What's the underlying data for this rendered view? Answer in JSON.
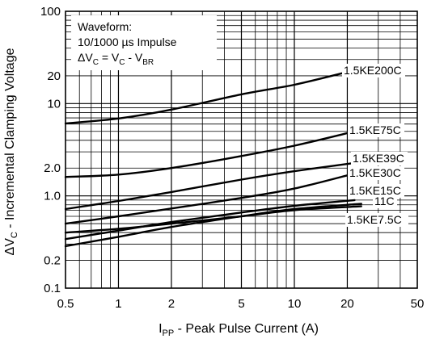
{
  "chart_data": {
    "type": "line",
    "x_scale": "log",
    "y_scale": "log",
    "xlim": [
      0.5,
      50
    ],
    "ylim": [
      0.1,
      100
    ],
    "grid": true,
    "xlabel": {
      "sym": "I",
      "sub": "PP",
      "rest": " - Peak Pulse Current (A)"
    },
    "ylabel": {
      "pre": "ΔV",
      "sub": "C",
      "rest": " - Incremental Clamping Voltage"
    },
    "x_ticks": [
      {
        "value": 0.5,
        "label": "0.5"
      },
      {
        "value": 1,
        "label": "1"
      },
      {
        "value": 2,
        "label": "2"
      },
      {
        "value": 5,
        "label": "5"
      },
      {
        "value": 10,
        "label": "10"
      },
      {
        "value": 20,
        "label": "20"
      },
      {
        "value": 50,
        "label": "50"
      }
    ],
    "y_ticks": [
      {
        "value": 0.1,
        "label": "0.1"
      },
      {
        "value": 0.2,
        "label": "0.2"
      },
      {
        "value": 1,
        "label": "1.0"
      },
      {
        "value": 2,
        "label": "2.0"
      },
      {
        "value": 10,
        "label": "10"
      },
      {
        "value": 20,
        "label": "20"
      },
      {
        "value": 100,
        "label": "100"
      }
    ],
    "annotation": {
      "line1": "Waveform:",
      "line2": "10/1000 µs Impulse",
      "line3": {
        "a": "ΔV",
        "a_sub": "C",
        "b": " = V",
        "b_sub": "C",
        "c": " - V",
        "c_sub": "BR"
      }
    },
    "series": [
      {
        "name": "1.5KE200C",
        "x": [
          0.5,
          1,
          2,
          5,
          10,
          20
        ],
        "y": [
          6.1,
          6.9,
          8.6,
          12.6,
          16.0,
          22.0
        ]
      },
      {
        "name": "1.5KE75C",
        "x": [
          0.5,
          1,
          2,
          5,
          10,
          22
        ],
        "y": [
          1.6,
          1.7,
          2.0,
          2.7,
          3.5,
          5.0
        ]
      },
      {
        "name": "1.5KE39C",
        "x": [
          0.5,
          1,
          2,
          5,
          10,
          23
        ],
        "y": [
          0.72,
          0.88,
          1.1,
          1.5,
          1.85,
          2.3
        ]
      },
      {
        "name": "1.5KE30C",
        "x": [
          0.5,
          1,
          2,
          5,
          10,
          22
        ],
        "y": [
          0.5,
          0.6,
          0.73,
          0.95,
          1.2,
          1.75
        ]
      },
      {
        "name": "1.5KE15C",
        "x": [
          0.5,
          1,
          2,
          5,
          10,
          22
        ],
        "y": [
          0.34,
          0.42,
          0.52,
          0.66,
          0.78,
          0.9
        ]
      },
      {
        "name": "11C",
        "x": [
          0.5,
          1,
          2,
          5,
          10,
          24
        ],
        "y": [
          0.285,
          0.36,
          0.46,
          0.6,
          0.72,
          0.82
        ]
      },
      {
        "name": "1.5KE7.5C",
        "x": [
          0.5,
          1,
          2,
          5,
          10,
          24
        ],
        "y": [
          0.4,
          0.44,
          0.5,
          0.6,
          0.7,
          0.77
        ]
      }
    ]
  }
}
